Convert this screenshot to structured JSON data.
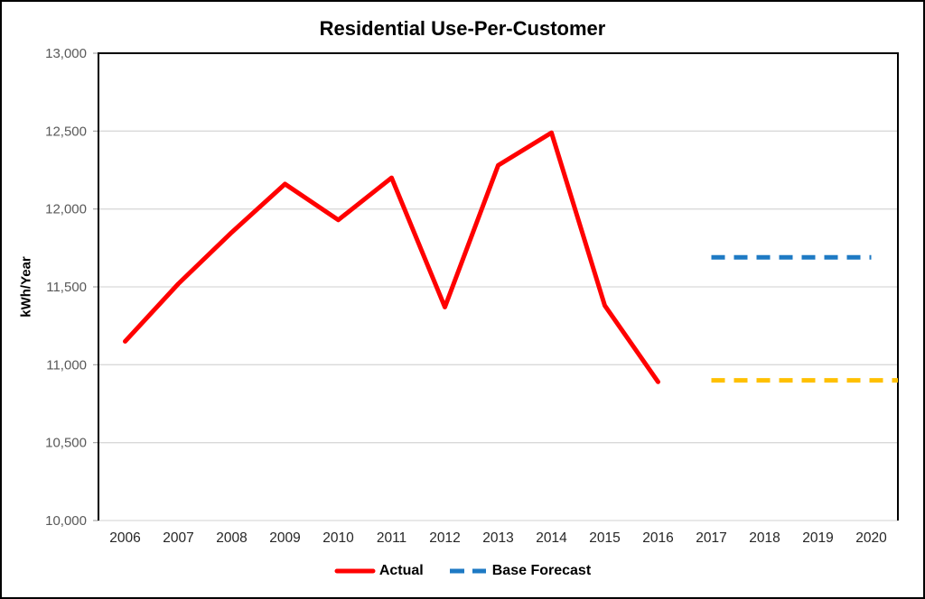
{
  "title": "Residential Use-Per-Customer",
  "y_axis_title": "kWh/Year",
  "legend": {
    "items": [
      {
        "label": "Actual",
        "color": "#FF0000",
        "style": "solid"
      },
      {
        "label": "Base Forecast",
        "color": "#1E7AC4",
        "style": "dashed"
      }
    ]
  },
  "colors": {
    "actual_line": "#FF0000",
    "base_forecast_line": "#1E7AC4",
    "low_forecast_line": "#FFC000",
    "gridline": "#D9D9D9",
    "plot_border": "#000000",
    "y_tick_text": "#595959",
    "x_tick_text": "#262626",
    "tick_mark": "#A6A6A6"
  },
  "chart_data": {
    "type": "line",
    "title": "Residential Use-Per-Customer",
    "xlabel": "",
    "ylabel": "kWh/Year",
    "x_categories": [
      "2006",
      "2007",
      "2008",
      "2009",
      "2010",
      "2011",
      "2012",
      "2013",
      "2014",
      "2015",
      "2016",
      "2017",
      "2018",
      "2019",
      "2020"
    ],
    "ylim": [
      10000,
      13000
    ],
    "ytick_values": [
      10000,
      10500,
      11000,
      11500,
      12000,
      12500,
      13000
    ],
    "ytick_labels": [
      "10,000",
      "10,500",
      "11,000",
      "11,500",
      "12,000",
      "12,500",
      "13,000"
    ],
    "grid": true,
    "legend_position": "bottom",
    "series": [
      {
        "name": "Actual",
        "color": "#FF0000",
        "line_style": "solid",
        "in_legend": true,
        "x": [
          "2006",
          "2007",
          "2008",
          "2009",
          "2010",
          "2011",
          "2012",
          "2013",
          "2014",
          "2015",
          "2016"
        ],
        "values": [
          11150,
          11520,
          11850,
          12160,
          11930,
          12200,
          11370,
          12280,
          12490,
          11380,
          10890
        ]
      },
      {
        "name": "Base Forecast",
        "color": "#1E7AC4",
        "line_style": "dashed",
        "in_legend": true,
        "x": [
          "2017",
          "2018",
          "2019",
          "2020"
        ],
        "values": [
          11690,
          11690,
          11690,
          11690
        ]
      },
      {
        "name": "Low Forecast (unlabeled)",
        "color": "#FFC000",
        "line_style": "dashed",
        "in_legend": false,
        "extends_to_plot_edge": true,
        "x": [
          "2017",
          "2018",
          "2019",
          "2020"
        ],
        "values": [
          10900,
          10900,
          10900,
          10900
        ]
      }
    ]
  }
}
